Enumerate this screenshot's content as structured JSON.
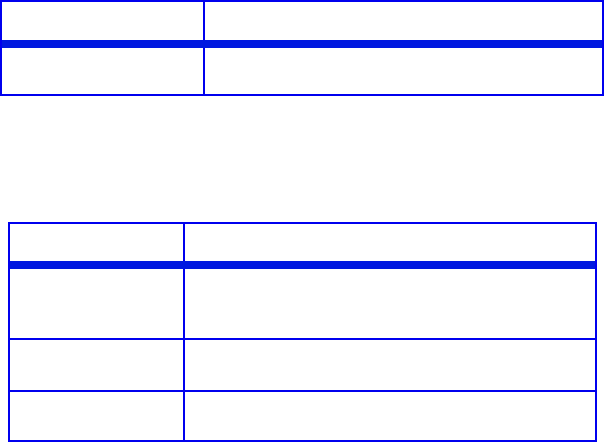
{
  "colors": {
    "border": "#0000ee",
    "header_rule": "#0018e0"
  },
  "table1": {
    "cells": [
      [
        "",
        ""
      ],
      [
        "",
        ""
      ]
    ]
  },
  "table2": {
    "cells": [
      [
        "",
        ""
      ],
      [
        "",
        ""
      ],
      [
        "",
        ""
      ],
      [
        "",
        ""
      ]
    ]
  }
}
